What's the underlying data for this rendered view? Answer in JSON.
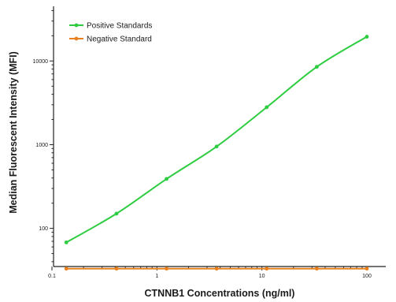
{
  "chart_data": {
    "type": "line",
    "title": "",
    "xlabel": "CTNNB1 Concentrations (ng/ml)",
    "ylabel": "Median Fluorescent Intensity (MFI)",
    "xscale": "log",
    "yscale": "log",
    "xlim": [
      0.1,
      100
    ],
    "ylim": [
      35,
      45000
    ],
    "x_ticks": [
      {
        "value": 0.1,
        "label": "0.1"
      },
      {
        "value": 1,
        "label": "1"
      },
      {
        "value": 10,
        "label": "10"
      },
      {
        "value": 100,
        "label": "100"
      }
    ],
    "y_ticks": [
      {
        "value": 100,
        "label": "100"
      },
      {
        "value": 1000,
        "label": "1000"
      },
      {
        "value": 10000,
        "label": "10000"
      }
    ],
    "grid": false,
    "legend": "top-left",
    "series": [
      {
        "name": "Positive Standards",
        "color": "#2ecc40",
        "x": [
          0.137,
          0.412,
          1.235,
          3.704,
          11.11,
          33.33,
          100
        ],
        "y": [
          68,
          150,
          390,
          950,
          2800,
          8500,
          19500
        ]
      },
      {
        "name": "Negative Standard",
        "color": "#e8801e",
        "x": [
          0.137,
          0.412,
          1.235,
          3.704,
          11.11,
          33.33,
          100
        ],
        "y": [
          33,
          33,
          33,
          33,
          33,
          33,
          33
        ]
      }
    ]
  }
}
